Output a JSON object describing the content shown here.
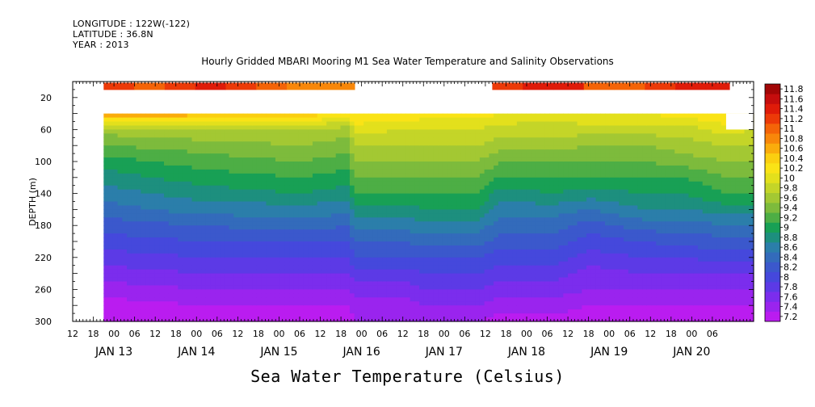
{
  "header": {
    "longitude": "LONGITUDE : 122W(-122)",
    "latitude": "LATITUDE : 36.8N",
    "year": "YEAR : 2013"
  },
  "chart_data": {
    "type": "heatmap",
    "title": "Hourly Gridded MBARI Mooring M1 Sea Water Temperature and Salinity Observations",
    "xlabel": "",
    "ylabel": "DEPTH (m)",
    "colorbar_label": "Sea Water Temperature (Celsius)",
    "x_range_hours": [
      0,
      198
    ],
    "x_hour_ticks": [
      "12",
      "18",
      "00",
      "06",
      "12",
      "18",
      "00",
      "06",
      "12",
      "18",
      "00",
      "06",
      "12",
      "18",
      "00",
      "06",
      "12",
      "18",
      "00",
      "06",
      "12",
      "18",
      "00",
      "06",
      "12",
      "18",
      "00",
      "06",
      "12",
      "18",
      "00",
      "06"
    ],
    "x_date_ticks": [
      "JAN 13",
      "JAN 14",
      "JAN 15",
      "JAN 16",
      "JAN 17",
      "JAN 18",
      "JAN 19",
      "JAN 20"
    ],
    "ylim": [
      300,
      0
    ],
    "y_ticks": [
      20,
      60,
      100,
      140,
      180,
      220,
      260,
      300
    ],
    "colorbar_levels": [
      "7.2",
      "7.4",
      "7.6",
      "7.8",
      "8",
      "8.2",
      "8.4",
      "8.6",
      "8.8",
      "9",
      "9.2",
      "9.4",
      "9.6",
      "9.8",
      "10",
      "10.2",
      "10.4",
      "10.6",
      "10.8",
      "11",
      "11.2",
      "11.4",
      "11.6",
      "11.8"
    ],
    "colors": [
      "#ba1cf0",
      "#9a24ee",
      "#7b2ded",
      "#5c3ae6",
      "#4548dc",
      "#3b58cc",
      "#336bbb",
      "#2b7eaa",
      "#1d8f7e",
      "#18a055",
      "#4dae45",
      "#7dbb3c",
      "#a3c833",
      "#c4d528",
      "#e3e01c",
      "#fae316",
      "#fbcf10",
      "#faac0c",
      "#f8870a",
      "#f46408",
      "#ec3a08",
      "#df1b09",
      "#c50d0d",
      "#a20606"
    ],
    "surface_temperature_c": [
      11.3,
      11.2,
      11.3,
      11.4,
      11.3,
      11.1,
      10.9,
      10.8,
      11.0,
      11.3,
      11.5,
      11.4,
      11.2,
      11.1,
      11.3,
      11.5
    ],
    "surface_data_hours": [
      [
        9,
        82
      ],
      [
        122,
        191
      ]
    ],
    "profile_hours": [
      9,
      38,
      66,
      80,
      82,
      96,
      102,
      118,
      124,
      140,
      150,
      166,
      178,
      190,
      198
    ],
    "profile_depths_m": [
      40,
      60,
      80,
      100,
      120,
      140,
      160,
      180,
      200,
      220,
      240,
      260,
      280,
      300
    ],
    "profile_temperature_c": [
      [
        10.8,
        9.7,
        9.4,
        9.1,
        8.9,
        8.7,
        8.5,
        8.3,
        8.1,
        7.9,
        7.7,
        7.5,
        7.3,
        7.2
      ],
      [
        10.7,
        9.8,
        9.5,
        9.3,
        9.1,
        8.9,
        8.7,
        8.4,
        8.2,
        8.0,
        7.8,
        7.6,
        7.4,
        7.3
      ],
      [
        10.6,
        9.8,
        9.6,
        9.4,
        9.2,
        9.0,
        8.7,
        8.5,
        8.2,
        8.0,
        7.8,
        7.6,
        7.4,
        7.3
      ],
      [
        10.3,
        9.7,
        9.5,
        9.3,
        9.1,
        8.9,
        8.7,
        8.4,
        8.2,
        8.0,
        7.8,
        7.6,
        7.4,
        7.3
      ],
      [
        10.4,
        10.1,
        9.8,
        9.6,
        9.4,
        9.2,
        8.9,
        8.7,
        8.4,
        8.2,
        7.9,
        7.7,
        7.5,
        7.4
      ],
      [
        10.4,
        10.0,
        9.8,
        9.6,
        9.4,
        9.2,
        8.9,
        8.7,
        8.4,
        8.2,
        7.9,
        7.7,
        7.5,
        7.4
      ],
      [
        10.3,
        10.0,
        9.8,
        9.6,
        9.4,
        9.2,
        9.0,
        8.7,
        8.5,
        8.2,
        8.0,
        7.8,
        7.6,
        7.4
      ],
      [
        10.3,
        10.0,
        9.8,
        9.6,
        9.4,
        9.2,
        9.0,
        8.7,
        8.5,
        8.2,
        8.0,
        7.8,
        7.6,
        7.4
      ],
      [
        10.2,
        9.9,
        9.7,
        9.4,
        9.2,
        8.9,
        8.7,
        8.5,
        8.3,
        8.1,
        7.9,
        7.7,
        7.5,
        7.3
      ],
      [
        10.1,
        9.9,
        9.7,
        9.4,
        9.2,
        9.0,
        8.7,
        8.5,
        8.3,
        8.1,
        7.9,
        7.7,
        7.5,
        7.3
      ],
      [
        10.2,
        9.9,
        9.6,
        9.4,
        9.2,
        8.9,
        8.6,
        8.3,
        8.1,
        7.9,
        7.7,
        7.6,
        7.4,
        7.3
      ],
      [
        10.2,
        9.9,
        9.6,
        9.4,
        9.2,
        9.0,
        8.8,
        8.5,
        8.2,
        8.0,
        7.8,
        7.6,
        7.4,
        7.3
      ],
      [
        10.3,
        9.9,
        9.7,
        9.5,
        9.2,
        9.0,
        8.8,
        8.5,
        8.3,
        8.0,
        7.8,
        7.6,
        7.4,
        7.3
      ],
      [
        10.4,
        10.1,
        9.8,
        9.6,
        9.4,
        9.2,
        8.9,
        8.6,
        8.3,
        8.1,
        7.8,
        7.6,
        7.4,
        7.3
      ],
      [
        10.4,
        10.0,
        9.8,
        9.6,
        9.4,
        9.2,
        8.9,
        8.6,
        8.3,
        8.1,
        7.8,
        7.6,
        7.4,
        7.3
      ]
    ]
  }
}
